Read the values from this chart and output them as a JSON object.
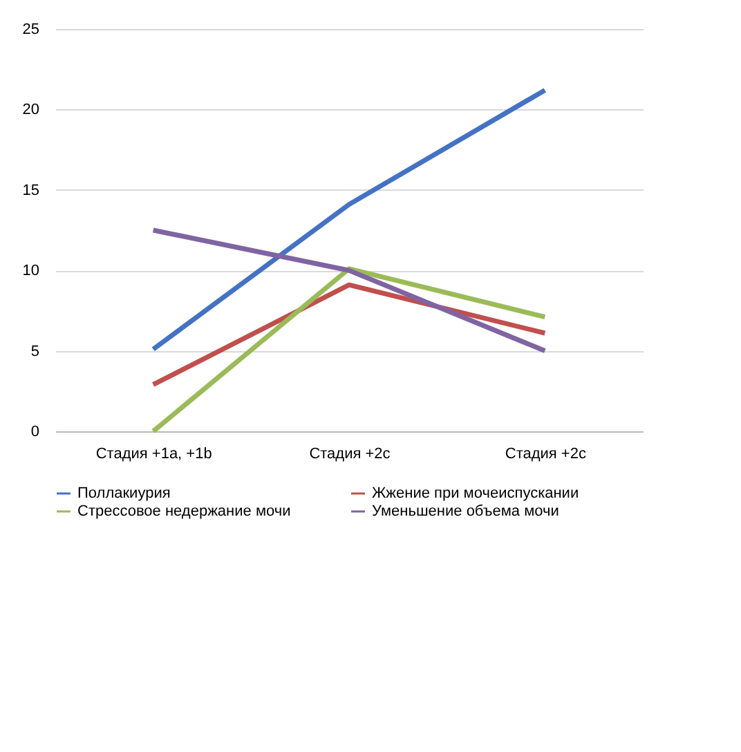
{
  "chart_data": {
    "type": "line",
    "categories": [
      "Стадия +1a, +1b",
      "Стадия +2c",
      "Стадия +2c"
    ],
    "series": [
      {
        "name": "Поллакиурия",
        "color": "#4472c4",
        "values": [
          5.1,
          14.1,
          21.2
        ]
      },
      {
        "name": "Жжение при мочеиспускании",
        "color": "#c0504d",
        "values": [
          2.9,
          9.1,
          6.1
        ]
      },
      {
        "name": "Стрессовое недержание мочи",
        "color": "#9bbb59",
        "values": [
          0,
          10.1,
          7.1
        ]
      },
      {
        "name": "Уменьшение объема мочи",
        "color": "#8064a2",
        "values": [
          12.5,
          10,
          5
        ]
      }
    ],
    "ylim": [
      0,
      25
    ],
    "yticks": [
      0,
      5,
      10,
      15,
      20,
      25
    ],
    "grid": "y",
    "legend": "bottom",
    "marker": "none",
    "line_style": "solid"
  }
}
